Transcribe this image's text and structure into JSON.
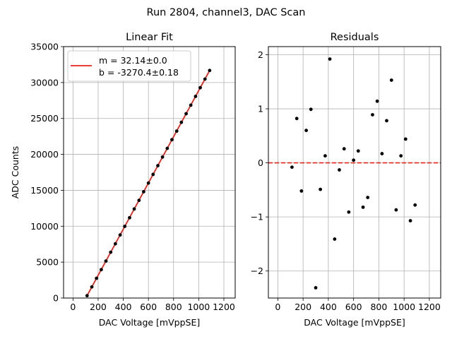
{
  "figure": {
    "suptitle": "Run 2804, channel3, DAC Scan"
  },
  "chart_data": [
    {
      "type": "line",
      "title": "Linear Fit",
      "xlabel": "DAC Voltage [mVppSE]",
      "ylabel": "ADC Counts",
      "xlim": [
        -75,
        1290
      ],
      "ylim": [
        0,
        35000
      ],
      "xticks": [
        0,
        200,
        400,
        600,
        800,
        1000,
        1200
      ],
      "xtick_labels": [
        "0",
        "200",
        "400",
        "600",
        "800",
        "1000",
        "1200"
      ],
      "yticks": [
        0,
        5000,
        10000,
        15000,
        20000,
        25000,
        30000,
        35000
      ],
      "ytick_labels": [
        "0",
        "5000",
        "10000",
        "15000",
        "20000",
        "25000",
        "30000",
        "35000"
      ],
      "grid": true,
      "legend": {
        "placement": "top-left",
        "entries": [
          "m = 32.14±0.0",
          "b = -3270.4±0.18"
        ],
        "line_color": "#e8231b"
      },
      "series": [
        {
          "kind": "scatter",
          "color": "#000000",
          "x": [
            112,
            150,
            187,
            225,
            262,
            300,
            337,
            375,
            412,
            450,
            487,
            525,
            562,
            600,
            637,
            675,
            712,
            750,
            787,
            825,
            862,
            900,
            937,
            975,
            1012,
            1050,
            1087
          ],
          "y": [
            330,
            1550,
            2750,
            3950,
            5150,
            6380,
            7550,
            8780,
            9980,
            11180,
            12400,
            13600,
            14800,
            16010,
            17210,
            18430,
            19630,
            20840,
            22040,
            23240,
            24460,
            25660,
            26850,
            28070,
            29280,
            30480,
            31680
          ]
        },
        {
          "kind": "line",
          "color": "#e8231b",
          "x": [
            112,
            1087
          ],
          "y": [
            330,
            31680
          ]
        }
      ]
    },
    {
      "type": "scatter",
      "title": "Residuals",
      "xlabel": "DAC Voltage [mVppSE]",
      "ylabel": "",
      "xlim": [
        -75,
        1290
      ],
      "ylim": [
        -2.5,
        2.15
      ],
      "xticks": [
        0,
        200,
        400,
        600,
        800,
        1000,
        1200
      ],
      "xtick_labels": [
        "0",
        "200",
        "400",
        "600",
        "800",
        "1000",
        "1200"
      ],
      "yticks": [
        -2,
        -1,
        0,
        1,
        2
      ],
      "ytick_labels": [
        "−2",
        "−1",
        "0",
        "1",
        "2"
      ],
      "grid": true,
      "zero_line": {
        "y": 0,
        "color": "#e8231b",
        "style": "dashed"
      },
      "series": [
        {
          "kind": "scatter",
          "color": "#000000",
          "x": [
            112,
            150,
            187,
            225,
            262,
            300,
            337,
            375,
            412,
            450,
            487,
            525,
            562,
            600,
            637,
            675,
            712,
            750,
            787,
            825,
            862,
            900,
            937,
            975,
            1012,
            1050,
            1087
          ],
          "y": [
            -0.08,
            0.82,
            -0.52,
            0.6,
            0.99,
            -2.31,
            -0.49,
            0.13,
            1.92,
            -1.41,
            -0.13,
            0.26,
            -0.91,
            0.05,
            0.22,
            -0.82,
            -0.64,
            0.89,
            1.14,
            0.17,
            0.78,
            1.53,
            -0.87,
            0.13,
            0.44,
            -1.07,
            -0.78
          ]
        }
      ]
    }
  ]
}
